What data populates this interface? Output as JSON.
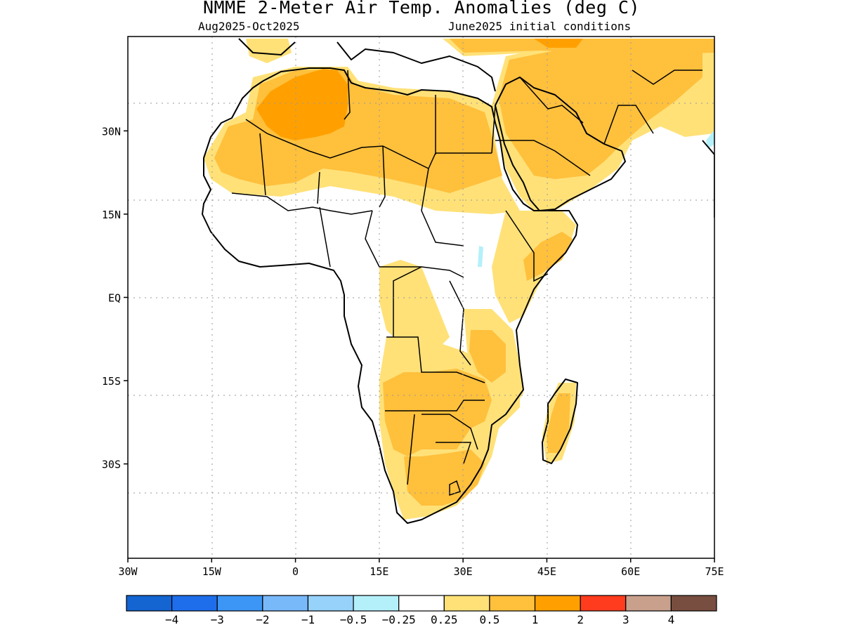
{
  "title": "NMME 2-Meter Air Temp. Anomalies (deg C)",
  "subtitle_left": "Aug2025-Oct2025",
  "subtitle_right": "June2025 initial conditions",
  "map": {
    "lon_range": [
      -30,
      75
    ],
    "lat_range": [
      -47,
      47
    ],
    "x_ticks": [
      {
        "value": -30,
        "label": "30W"
      },
      {
        "value": -15,
        "label": "15W"
      },
      {
        "value": 0,
        "label": "0"
      },
      {
        "value": 15,
        "label": "15E"
      },
      {
        "value": 30,
        "label": "30E"
      },
      {
        "value": 45,
        "label": "45E"
      },
      {
        "value": 60,
        "label": "60E"
      },
      {
        "value": 75,
        "label": "75E"
      }
    ],
    "y_ticks": [
      {
        "value": 30,
        "label": "30N"
      },
      {
        "value": 15,
        "label": "15N"
      },
      {
        "value": 0,
        "label": "EQ"
      },
      {
        "value": -15,
        "label": "15S"
      },
      {
        "value": -30,
        "label": "30S"
      }
    ],
    "grid": "dotted"
  },
  "colorbar": {
    "colors": [
      "#1464d2",
      "#1e6eeb",
      "#3c96f5",
      "#78b9fa",
      "#96d2fa",
      "#b4f0fa",
      "#ffffff",
      "#ffe178",
      "#ffc03c",
      "#ffa000",
      "#ff3c1e",
      "#c8a08c",
      "#784e40"
    ],
    "labels": [
      "-4",
      "-3",
      "-2",
      "-1",
      "-0.5",
      "-0.25",
      "0.25",
      "0.5",
      "1",
      "2",
      "3",
      "4"
    ]
  },
  "regions": [
    {
      "name": "sahara-sahel",
      "level": "0.25-0.5"
    },
    {
      "name": "sahara-north",
      "level": "0.5-1"
    },
    {
      "name": "algeria-core",
      "level": "1-2"
    },
    {
      "name": "arabia",
      "level": "0.5-1"
    },
    {
      "name": "southern-africa",
      "level": "0.5-1"
    },
    {
      "name": "madagascar",
      "level": "0.5-1"
    },
    {
      "name": "red-sea-lake",
      "level": "-0.5--0.25"
    }
  ]
}
